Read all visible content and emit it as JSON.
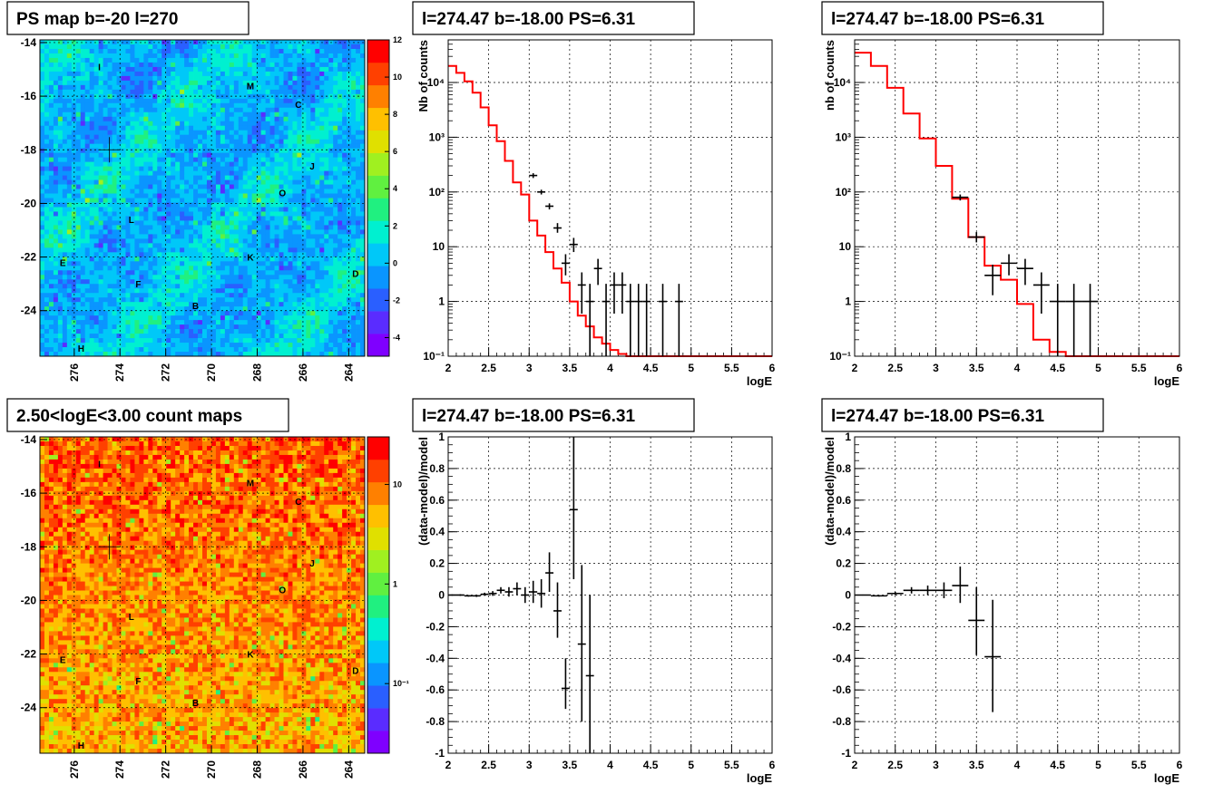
{
  "chart_data": [
    {
      "id": "ps-map",
      "type": "heatmap",
      "title": "PS map b=-20 l=270",
      "xlabel": "",
      "ylabel": "",
      "xlim": [
        277.5,
        263.3
      ],
      "ylim": [
        -25.7,
        -13.9
      ],
      "x_ticks": [
        276,
        274,
        272,
        270,
        268,
        266,
        264
      ],
      "y_ticks": [
        -14,
        -16,
        -18,
        -20,
        -22,
        -24
      ],
      "colorbar": {
        "min": -5,
        "max": 12,
        "ticks": [
          -4,
          -2,
          0,
          2,
          4,
          6,
          8,
          10,
          12
        ],
        "scale": "linear"
      },
      "palette": [
        "#7f00ff",
        "#5a2cff",
        "#2a5fff",
        "#0a95ff",
        "#00c8f8",
        "#00f0d0",
        "#20f080",
        "#60f040",
        "#a0f020",
        "#e0e000",
        "#ffc000",
        "#ff8000",
        "#ff4000",
        "#ff0000"
      ],
      "dominant_value": 0.3,
      "grid": true,
      "sources": [
        {
          "label": "I",
          "l": 274.9,
          "b": -14.9
        },
        {
          "label": "M",
          "l": 268.3,
          "b": -15.6
        },
        {
          "label": "C",
          "l": 266.2,
          "b": -16.3
        },
        {
          "label": "J",
          "l": 265.6,
          "b": -18.6
        },
        {
          "label": "O",
          "l": 266.9,
          "b": -19.6
        },
        {
          "label": "L",
          "l": 273.5,
          "b": -20.6
        },
        {
          "label": "E",
          "l": 276.5,
          "b": -22.2
        },
        {
          "label": "K",
          "l": 268.3,
          "b": -22.0
        },
        {
          "label": "D",
          "l": 263.7,
          "b": -22.6
        },
        {
          "label": "F",
          "l": 273.2,
          "b": -23.0
        },
        {
          "label": "B",
          "l": 270.7,
          "b": -23.8
        },
        {
          "label": "H",
          "l": 275.7,
          "b": -25.4
        }
      ]
    },
    {
      "id": "count-map",
      "type": "heatmap",
      "title": "2.50<logE<3.00 count maps",
      "xlabel": "",
      "ylabel": "",
      "xlim": [
        277.5,
        263.3
      ],
      "ylim": [
        -25.7,
        -13.9
      ],
      "x_ticks": [
        276,
        274,
        272,
        270,
        268,
        266,
        264
      ],
      "y_ticks": [
        -14,
        -16,
        -18,
        -20,
        -22,
        -24
      ],
      "colorbar": {
        "min": 0.02,
        "max": 30,
        "ticks": [
          "10",
          "1",
          "10⁻¹"
        ],
        "tick_values": [
          10,
          1,
          0.1
        ],
        "scale": "log"
      },
      "palette": [
        "#7f00ff",
        "#5a2cff",
        "#2a5fff",
        "#0a95ff",
        "#00c8f8",
        "#00f0d0",
        "#20f080",
        "#60f040",
        "#a0f020",
        "#e0e000",
        "#ffc000",
        "#ff8000",
        "#ff4000",
        "#ff0000"
      ],
      "dominant_value": 12,
      "grid": true
    },
    {
      "id": "spec-fine",
      "type": "line",
      "title": "l=274.47 b=-18.00 PS=6.31",
      "xlabel": "logE",
      "ylabel": "Nb of counts",
      "xlim": [
        2,
        6
      ],
      "ylim": [
        0.1,
        60000
      ],
      "yscale": "log",
      "x_ticks": [
        "2",
        "2.5",
        "3",
        "3.5",
        "4",
        "4.5",
        "5",
        "5.5",
        "6"
      ],
      "y_ticks": [
        {
          "v": 0.1,
          "t": "10⁻¹"
        },
        {
          "v": 1,
          "t": "1"
        },
        {
          "v": 10,
          "t": "10"
        },
        {
          "v": 100,
          "t": "10²"
        },
        {
          "v": 1000,
          "t": "10³"
        },
        {
          "v": 10000,
          "t": "10⁴"
        }
      ],
      "model_edges": [
        2.0,
        2.1,
        2.2,
        2.3,
        2.4,
        2.5,
        2.6,
        2.7,
        2.8,
        2.9,
        3.0,
        3.1,
        3.2,
        3.3,
        3.4,
        3.5,
        3.6,
        3.7,
        3.8,
        3.9,
        4.0,
        4.1,
        4.2,
        4.3,
        6.0
      ],
      "model_values": [
        20000,
        15000,
        10500,
        6500,
        3500,
        1650,
        850,
        370,
        150,
        90,
        30,
        16,
        8,
        4,
        2.2,
        1.0,
        0.55,
        0.35,
        0.22,
        0.17,
        0.13,
        0.11,
        0.09,
        0.09
      ],
      "data": [
        {
          "x": 3.05,
          "y": 200,
          "lo": 180,
          "hi": 220
        },
        {
          "x": 3.15,
          "y": 100,
          "lo": 90,
          "hi": 110
        },
        {
          "x": 3.25,
          "y": 55,
          "lo": 48,
          "hi": 62
        },
        {
          "x": 3.35,
          "y": 22,
          "lo": 18,
          "hi": 27
        },
        {
          "x": 3.45,
          "y": 5,
          "lo": 3,
          "hi": 7.3
        },
        {
          "x": 3.55,
          "y": 11,
          "lo": 8,
          "hi": 14.5
        },
        {
          "x": 3.65,
          "y": 2,
          "lo": 0.6,
          "hi": 3.4
        },
        {
          "x": 3.75,
          "y": 1,
          "lo": 0.1,
          "hi": 2.1
        },
        {
          "x": 3.85,
          "y": 4,
          "lo": 2,
          "hi": 6
        },
        {
          "x": 3.95,
          "y": 1,
          "lo": 0.1,
          "hi": 2.1
        },
        {
          "x": 4.05,
          "y": 2,
          "lo": 0.6,
          "hi": 3.4
        },
        {
          "x": 4.15,
          "y": 2,
          "lo": 0.6,
          "hi": 3.4
        },
        {
          "x": 4.25,
          "y": 1,
          "lo": 0.1,
          "hi": 2.1
        },
        {
          "x": 4.35,
          "y": 1,
          "lo": 0.1,
          "hi": 2.1
        },
        {
          "x": 4.45,
          "y": 1,
          "lo": 0.1,
          "hi": 2.1
        },
        {
          "x": 4.65,
          "y": 1,
          "lo": 0.1,
          "hi": 2.1
        },
        {
          "x": 4.85,
          "y": 1,
          "lo": 0.1,
          "hi": 2.1
        }
      ]
    },
    {
      "id": "spec-coarse",
      "type": "line",
      "title": "l=274.47 b=-18.00 PS=6.31",
      "xlabel": "logE",
      "ylabel": "nb of counts",
      "xlim": [
        2,
        6
      ],
      "ylim": [
        0.1,
        60000
      ],
      "yscale": "log",
      "x_ticks": [
        "2",
        "2.5",
        "3",
        "3.5",
        "4",
        "4.5",
        "5",
        "5.5",
        "6"
      ],
      "y_ticks": [
        {
          "v": 0.1,
          "t": "10⁻¹"
        },
        {
          "v": 1,
          "t": "1"
        },
        {
          "v": 10,
          "t": "10"
        },
        {
          "v": 100,
          "t": "10²"
        },
        {
          "v": 1000,
          "t": "10³"
        },
        {
          "v": 10000,
          "t": "10⁴"
        }
      ],
      "model_edges": [
        2.0,
        2.2,
        2.4,
        2.6,
        2.8,
        3.0,
        3.2,
        3.4,
        3.6,
        3.8,
        4.0,
        4.2,
        4.4,
        4.6,
        6.0
      ],
      "model_values": [
        35000,
        20000,
        8000,
        2700,
        950,
        300,
        75,
        15,
        4.5,
        2.5,
        0.9,
        0.2,
        0.12,
        0.1
      ],
      "data": [
        {
          "x": 3.3,
          "y": 80,
          "lo": 70,
          "hi": 90
        },
        {
          "x": 3.5,
          "y": 15,
          "lo": 12,
          "hi": 18.5
        },
        {
          "x": 3.7,
          "y": 3,
          "lo": 1.3,
          "hi": 4.7
        },
        {
          "x": 3.9,
          "y": 5,
          "lo": 3,
          "hi": 7.3
        },
        {
          "x": 4.1,
          "y": 4,
          "lo": 2,
          "hi": 6
        },
        {
          "x": 4.3,
          "y": 2,
          "lo": 0.6,
          "hi": 3.4
        },
        {
          "x": 4.5,
          "y": 1,
          "lo": 0.1,
          "hi": 2.1
        },
        {
          "x": 4.7,
          "y": 1,
          "lo": 0.1,
          "hi": 2.1
        },
        {
          "x": 4.9,
          "y": 1,
          "lo": 0.1,
          "hi": 2.1
        }
      ]
    },
    {
      "id": "resid-fine",
      "type": "scatter",
      "title": "l=274.47 b=-18.00 PS=6.31",
      "xlabel": "logE",
      "ylabel": "(data-model)/model",
      "xlim": [
        2,
        6
      ],
      "ylim": [
        -1,
        1
      ],
      "x_ticks": [
        "2",
        "2.5",
        "3",
        "3.5",
        "4",
        "4.5",
        "5",
        "5.5",
        "6"
      ],
      "y_ticks": [
        "-1",
        "-0.8",
        "-0.6",
        "-0.4",
        "-0.2",
        "0",
        "0.2",
        "0.4",
        "0.6",
        "0.8",
        "1"
      ],
      "data": [
        {
          "x": 2.05,
          "y": 0.0,
          "lo": -0.004,
          "hi": 0.004
        },
        {
          "x": 2.15,
          "y": 0.0,
          "lo": -0.005,
          "hi": 0.005
        },
        {
          "x": 2.25,
          "y": -0.005,
          "lo": -0.01,
          "hi": 0.0
        },
        {
          "x": 2.35,
          "y": -0.005,
          "lo": -0.012,
          "hi": 0.002
        },
        {
          "x": 2.45,
          "y": 0.005,
          "lo": -0.005,
          "hi": 0.015
        },
        {
          "x": 2.55,
          "y": 0.01,
          "lo": -0.005,
          "hi": 0.025
        },
        {
          "x": 2.65,
          "y": 0.03,
          "lo": 0.01,
          "hi": 0.05
        },
        {
          "x": 2.75,
          "y": 0.02,
          "lo": -0.01,
          "hi": 0.05
        },
        {
          "x": 2.85,
          "y": 0.04,
          "lo": 0.0,
          "hi": 0.08
        },
        {
          "x": 2.95,
          "y": 0.0,
          "lo": -0.05,
          "hi": 0.05
        },
        {
          "x": 3.05,
          "y": 0.02,
          "lo": -0.05,
          "hi": 0.09
        },
        {
          "x": 3.15,
          "y": 0.01,
          "lo": -0.08,
          "hi": 0.1
        },
        {
          "x": 3.25,
          "y": 0.14,
          "lo": 0.02,
          "hi": 0.27
        },
        {
          "x": 3.35,
          "y": -0.1,
          "lo": -0.27,
          "hi": 0.08
        },
        {
          "x": 3.45,
          "y": -0.59,
          "lo": -0.72,
          "hi": -0.4
        },
        {
          "x": 3.55,
          "y": 0.54,
          "lo": 0.1,
          "hi": 1.0
        },
        {
          "x": 3.65,
          "y": -0.31,
          "lo": -0.8,
          "hi": 0.19
        },
        {
          "x": 3.75,
          "y": -0.51,
          "lo": -1.0,
          "hi": 0.0
        }
      ]
    },
    {
      "id": "resid-coarse",
      "type": "scatter",
      "title": "l=274.47 b=-18.00 PS=6.31",
      "xlabel": "logE",
      "ylabel": "(data-model)/model",
      "xlim": [
        2,
        6
      ],
      "ylim": [
        -1,
        1
      ],
      "x_ticks": [
        "2",
        "2.5",
        "3",
        "3.5",
        "4",
        "4.5",
        "5",
        "5.5",
        "6"
      ],
      "y_ticks": [
        "-1",
        "-0.8",
        "-0.6",
        "-0.4",
        "-0.2",
        "0",
        "0.2",
        "0.4",
        "0.6",
        "0.8",
        "1"
      ],
      "data": [
        {
          "x": 2.1,
          "y": 0.0,
          "lo": -0.003,
          "hi": 0.003
        },
        {
          "x": 2.3,
          "y": -0.005,
          "lo": -0.01,
          "hi": 0.0
        },
        {
          "x": 2.5,
          "y": 0.01,
          "lo": 0.0,
          "hi": 0.02
        },
        {
          "x": 2.7,
          "y": 0.03,
          "lo": 0.01,
          "hi": 0.05
        },
        {
          "x": 2.9,
          "y": 0.03,
          "lo": 0.0,
          "hi": 0.06
        },
        {
          "x": 3.1,
          "y": 0.03,
          "lo": -0.02,
          "hi": 0.08
        },
        {
          "x": 3.3,
          "y": 0.06,
          "lo": -0.05,
          "hi": 0.18
        },
        {
          "x": 3.5,
          "y": -0.16,
          "lo": -0.38,
          "hi": 0.05
        },
        {
          "x": 3.7,
          "y": -0.39,
          "lo": -0.74,
          "hi": -0.03
        }
      ]
    }
  ]
}
